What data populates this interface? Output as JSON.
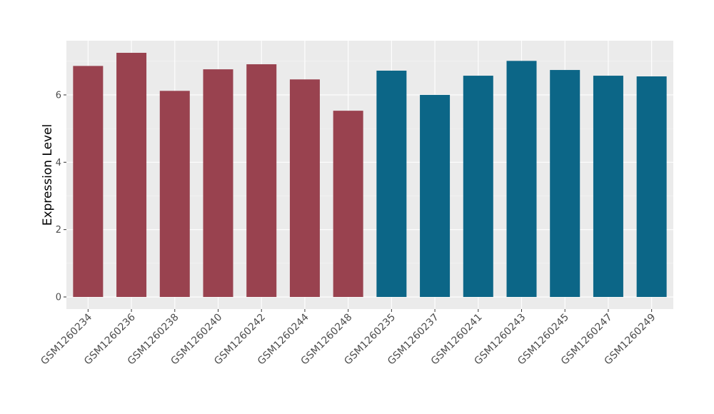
{
  "chart_data": {
    "type": "bar",
    "y_label": "Expression Level",
    "categories": [
      "GSM1260234",
      "GSM1260236",
      "GSM1260238",
      "GSM1260240",
      "GSM1260242",
      "GSM1260244",
      "GSM1260248",
      "GSM1260235",
      "GSM1260237",
      "GSM1260241",
      "GSM1260243",
      "GSM1260245",
      "GSM1260247",
      "GSM1260249"
    ],
    "values": [
      6.86,
      7.25,
      6.12,
      6.76,
      6.91,
      6.46,
      5.53,
      6.72,
      6.0,
      6.57,
      7.01,
      6.74,
      6.57,
      6.55
    ],
    "colors": [
      "#99424f",
      "#99424f",
      "#99424f",
      "#99424f",
      "#99424f",
      "#99424f",
      "#99424f",
      "#0c6687",
      "#0c6687",
      "#0c6687",
      "#0c6687",
      "#0c6687",
      "#0c6687",
      "#0c6687"
    ],
    "ylim": [
      -0.36,
      7.61
    ],
    "yticks": [
      0,
      2,
      4,
      6
    ],
    "grid": true
  }
}
